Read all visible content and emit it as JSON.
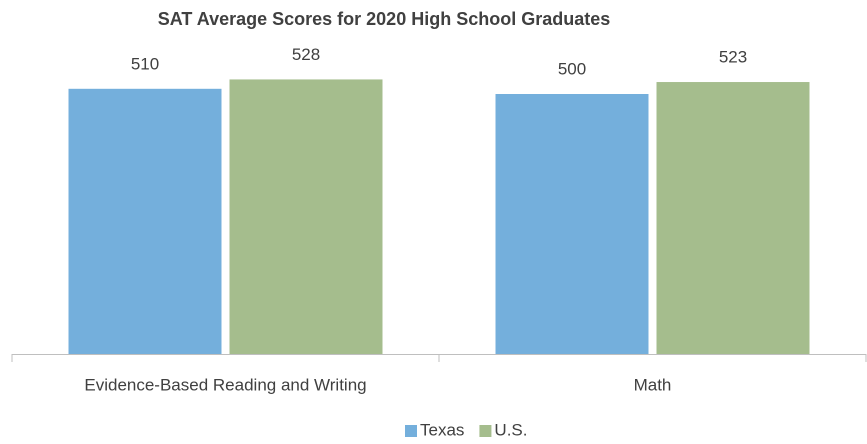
{
  "chart_data": {
    "type": "bar",
    "title": "SAT Average Scores for 2020 High School Graduates",
    "categories": [
      "Evidence-Based Reading and Writing",
      "Math"
    ],
    "series": [
      {
        "name": "Texas",
        "color": "#74afdc",
        "values": [
          510,
          500
        ]
      },
      {
        "name": "U.S.",
        "color": "#a5bd8d",
        "values": [
          528,
          523
        ]
      }
    ],
    "ylim": [
      0,
      600
    ],
    "legend": "bottom"
  }
}
